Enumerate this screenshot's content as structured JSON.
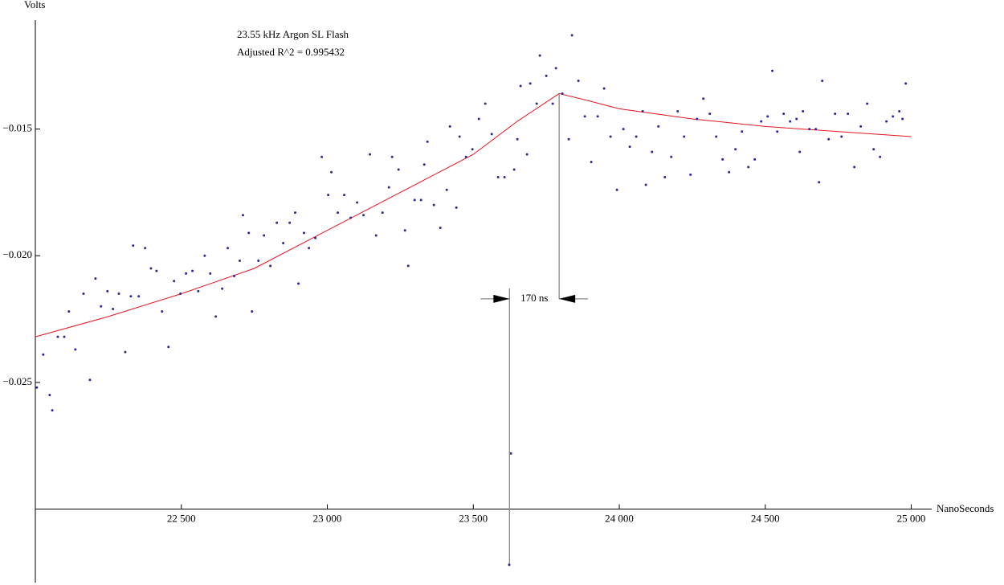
{
  "chart_data": {
    "type": "scatter",
    "title": "23.55 kHz Argon SL Flash",
    "subtitle": "Adjusted R^2 = 0.995432",
    "x_label": "NanoSeconds",
    "y_label": "Volts",
    "xlim": [
      22000,
      25070
    ],
    "ylim": [
      -0.0329,
      -0.0107
    ],
    "x_axis_crossing": -0.03,
    "xticks": [
      {
        "value": 22500,
        "label": "22 500"
      },
      {
        "value": 23000,
        "label": "23 000"
      },
      {
        "value": 23500,
        "label": "23 500"
      },
      {
        "value": 24000,
        "label": "24 000"
      },
      {
        "value": 24500,
        "label": "24 500"
      },
      {
        "value": 25000,
        "label": "25 000"
      }
    ],
    "yticks": [
      {
        "value": -0.015,
        "label": "−0.015"
      },
      {
        "value": -0.02,
        "label": "−0.020"
      },
      {
        "value": -0.025,
        "label": "−0.025"
      }
    ],
    "color": "#2a2a96",
    "x": [
      22005,
      22027,
      22049,
      22058,
      22077,
      22099,
      22115,
      22137,
      22165,
      22187,
      22206,
      22225,
      22247,
      22266,
      22286,
      22308,
      22327,
      22335,
      22354,
      22376,
      22396,
      22415,
      22434,
      22456,
      22475,
      22497,
      22516,
      22538,
      22558,
      22580,
      22599,
      22618,
      22640,
      22659,
      22681,
      22700,
      22711,
      22731,
      22742,
      22764,
      22783,
      22805,
      22827,
      22849,
      22871,
      22890,
      22901,
      22920,
      22937,
      22959,
      22981,
      23003,
      23014,
      23036,
      23058,
      23080,
      23102,
      23124,
      23146,
      23167,
      23189,
      23211,
      23222,
      23244,
      23266,
      23277,
      23299,
      23321,
      23332,
      23343,
      23365,
      23387,
      23409,
      23420,
      23442,
      23453,
      23475,
      23497,
      23519,
      23541,
      23563,
      23585,
      23607,
      23623,
      23629,
      23640,
      23651,
      23662,
      23684,
      23695,
      23717,
      23728,
      23750,
      23772,
      23783,
      23805,
      23827,
      23838,
      23860,
      23882,
      23904,
      23926,
      23948,
      23970,
      23992,
      24014,
      24036,
      24058,
      24080,
      24091,
      24112,
      24134,
      24156,
      24178,
      24200,
      24222,
      24244,
      24266,
      24288,
      24310,
      24332,
      24354,
      24376,
      24398,
      24420,
      24442,
      24464,
      24486,
      24508,
      24524,
      24541,
      24563,
      24585,
      24607,
      24618,
      24629,
      24651,
      24673,
      24684,
      24695,
      24717,
      24739,
      24761,
      24783,
      24805,
      24827,
      24849,
      24871,
      24893,
      24915,
      24937,
      24959,
      24970,
      24981
    ],
    "values": [
      -0.0252,
      -0.0239,
      -0.0255,
      -0.0261,
      -0.0232,
      -0.0232,
      -0.0222,
      -0.0237,
      -0.0215,
      -0.0249,
      -0.0209,
      -0.022,
      -0.0214,
      -0.0221,
      -0.0215,
      -0.0238,
      -0.0216,
      -0.0196,
      -0.0216,
      -0.0197,
      -0.0205,
      -0.0206,
      -0.0222,
      -0.0236,
      -0.021,
      -0.0215,
      -0.0207,
      -0.0206,
      -0.0214,
      -0.02,
      -0.0207,
      -0.0224,
      -0.0213,
      -0.0197,
      -0.0208,
      -0.0202,
      -0.0184,
      -0.0191,
      -0.0222,
      -0.0202,
      -0.0192,
      -0.0204,
      -0.0187,
      -0.0195,
      -0.0187,
      -0.0183,
      -0.0211,
      -0.0191,
      -0.0197,
      -0.0193,
      -0.0161,
      -0.0176,
      -0.0167,
      -0.0183,
      -0.0176,
      -0.0185,
      -0.0179,
      -0.0184,
      -0.016,
      -0.0192,
      -0.0183,
      -0.0173,
      -0.0161,
      -0.0166,
      -0.019,
      -0.0204,
      -0.0178,
      -0.0178,
      -0.0164,
      -0.0155,
      -0.018,
      -0.0189,
      -0.0174,
      -0.0149,
      -0.0181,
      -0.0153,
      -0.0161,
      -0.0158,
      -0.0146,
      -0.014,
      -0.0152,
      -0.0169,
      -0.0169,
      -0.0322,
      -0.0278,
      -0.0166,
      -0.0154,
      -0.0133,
      -0.016,
      -0.0132,
      -0.014,
      -0.0121,
      -0.0129,
      -0.014,
      -0.0126,
      -0.0136,
      -0.0154,
      -0.0113,
      -0.0131,
      -0.0145,
      -0.0163,
      -0.0145,
      -0.0134,
      -0.0153,
      -0.0174,
      -0.015,
      -0.0157,
      -0.0153,
      -0.0143,
      -0.0172,
      -0.0159,
      -0.0149,
      -0.0169,
      -0.0161,
      -0.0143,
      -0.0153,
      -0.0168,
      -0.0146,
      -0.0138,
      -0.0144,
      -0.0153,
      -0.0162,
      -0.0167,
      -0.0158,
      -0.0151,
      -0.0165,
      -0.0162,
      -0.0147,
      -0.0145,
      -0.0127,
      -0.0151,
      -0.0144,
      -0.0147,
      -0.0146,
      -0.0159,
      -0.0143,
      -0.015,
      -0.015,
      -0.0171,
      -0.0131,
      -0.0154,
      -0.0144,
      -0.0153,
      -0.0144,
      -0.0165,
      -0.0149,
      -0.014,
      -0.0158,
      -0.0161,
      -0.0147,
      -0.0145,
      -0.0143,
      -0.0146,
      -0.0132
    ],
    "fit": {
      "color": "#e8141e",
      "x": [
        22000,
        22250,
        22500,
        22750,
        23000,
        23250,
        23500,
        23650,
        23794,
        23900,
        24000,
        24250,
        24500,
        24750,
        25000
      ],
      "values": [
        -0.0232,
        -0.0224,
        -0.0215,
        -0.0205,
        -0.019,
        -0.0175,
        -0.016,
        -0.0147,
        -0.0136,
        -0.0139,
        -0.0142,
        -0.0146,
        -0.0149,
        -0.0151,
        -0.0153
      ]
    },
    "annotation": {
      "text": "170 ns",
      "x1": 23624,
      "x2": 23794,
      "y": -0.0217
    }
  }
}
